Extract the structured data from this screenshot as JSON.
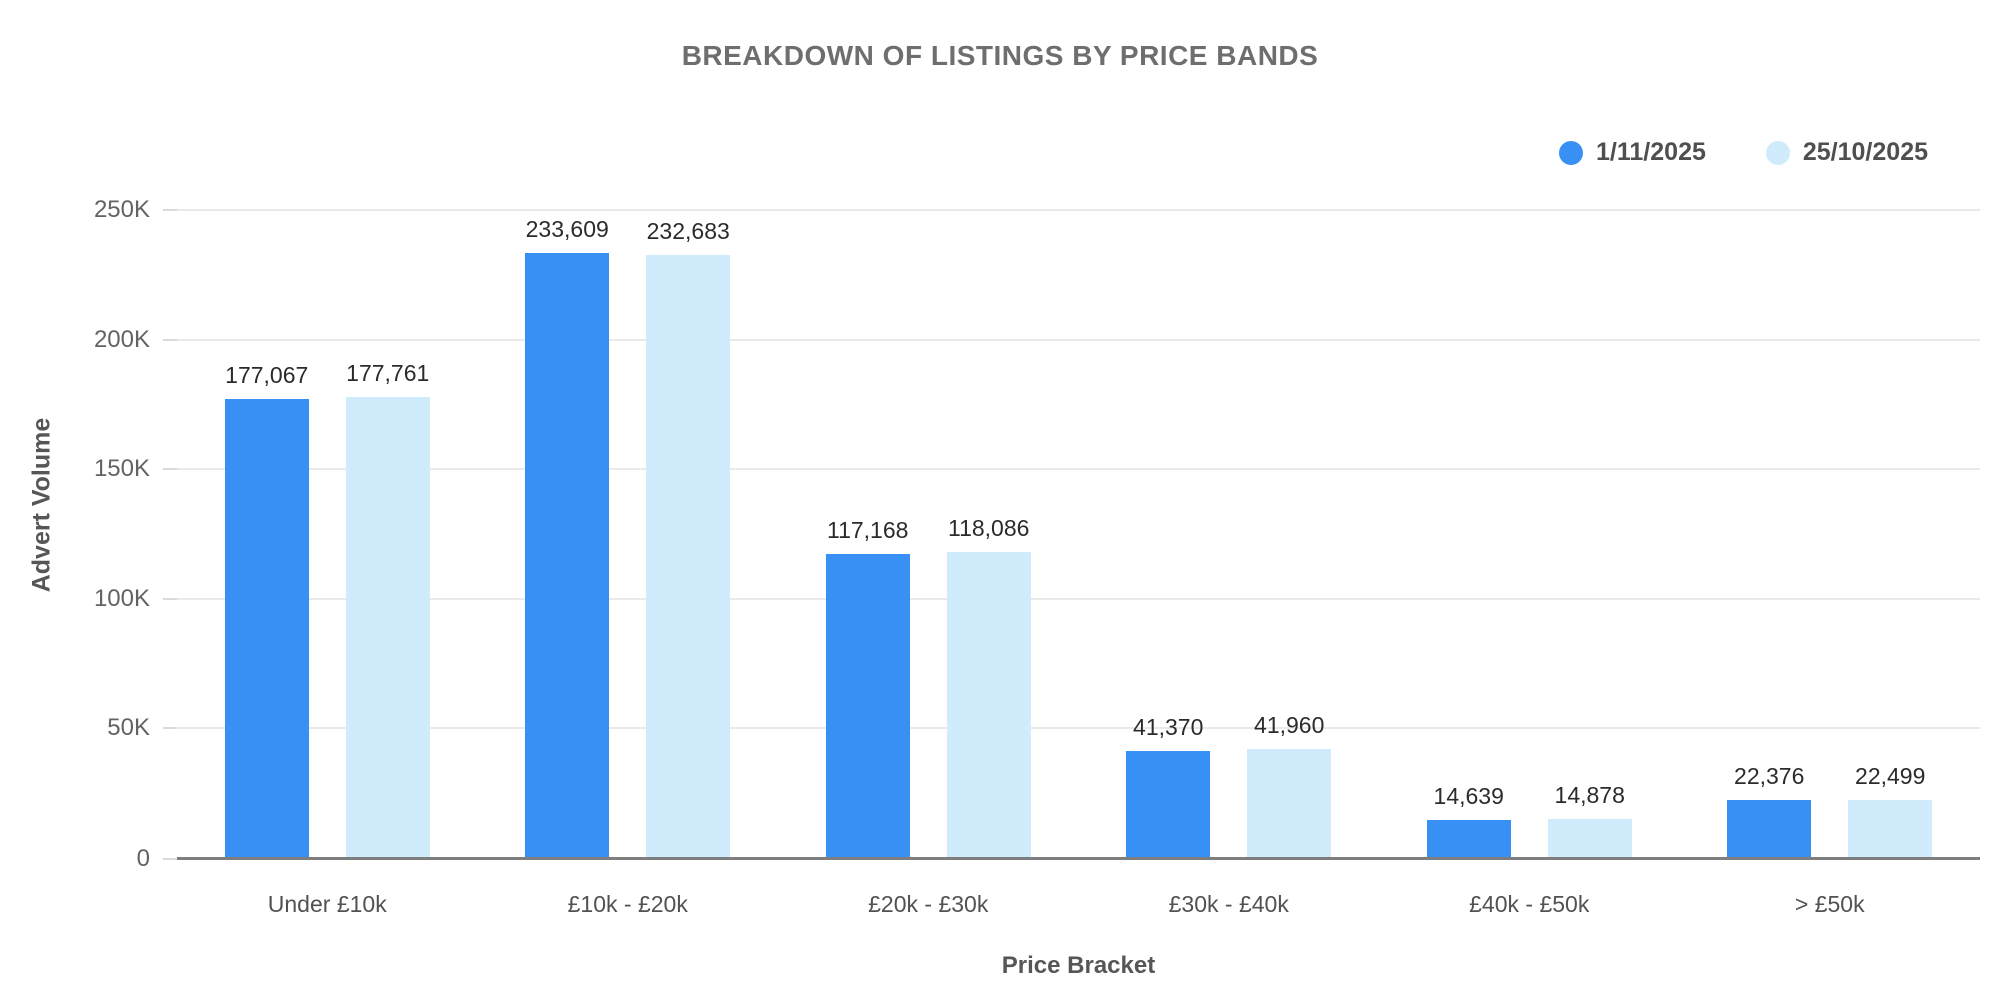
{
  "chart_data": {
    "type": "bar",
    "title": "BREAKDOWN OF LISTINGS BY PRICE BANDS",
    "xlabel": "Price Bracket",
    "ylabel": "Advert Volume",
    "ylim": [
      0,
      250000
    ],
    "grid": true,
    "legend_position": "top-right",
    "categories": [
      "Under £10k",
      "£10k - £20k",
      "£20k - £30k",
      "£30k - £40k",
      "£40k - £50k",
      "> £50k"
    ],
    "y_ticks": [
      {
        "label": "250K",
        "value": 250000
      },
      {
        "label": "200K",
        "value": 200000
      },
      {
        "label": "150K",
        "value": 150000
      },
      {
        "label": "100K",
        "value": 100000
      },
      {
        "label": "50K",
        "value": 50000
      },
      {
        "label": "0",
        "value": 0
      }
    ],
    "series": [
      {
        "name": "1/11/2025",
        "color": "#3990F4",
        "values": [
          177067,
          233609,
          117168,
          41370,
          14639,
          22376
        ],
        "labels": [
          "177,067",
          "233,609",
          "117,168",
          "41,370",
          "14,639",
          "22,376"
        ]
      },
      {
        "name": "25/10/2025",
        "color": "#D0EBFC",
        "values": [
          177761,
          232683,
          118086,
          41960,
          14878,
          22499
        ],
        "labels": [
          "177,761",
          "232,683",
          "118,086",
          "41,960",
          "14,878",
          "22,499"
        ]
      }
    ]
  }
}
